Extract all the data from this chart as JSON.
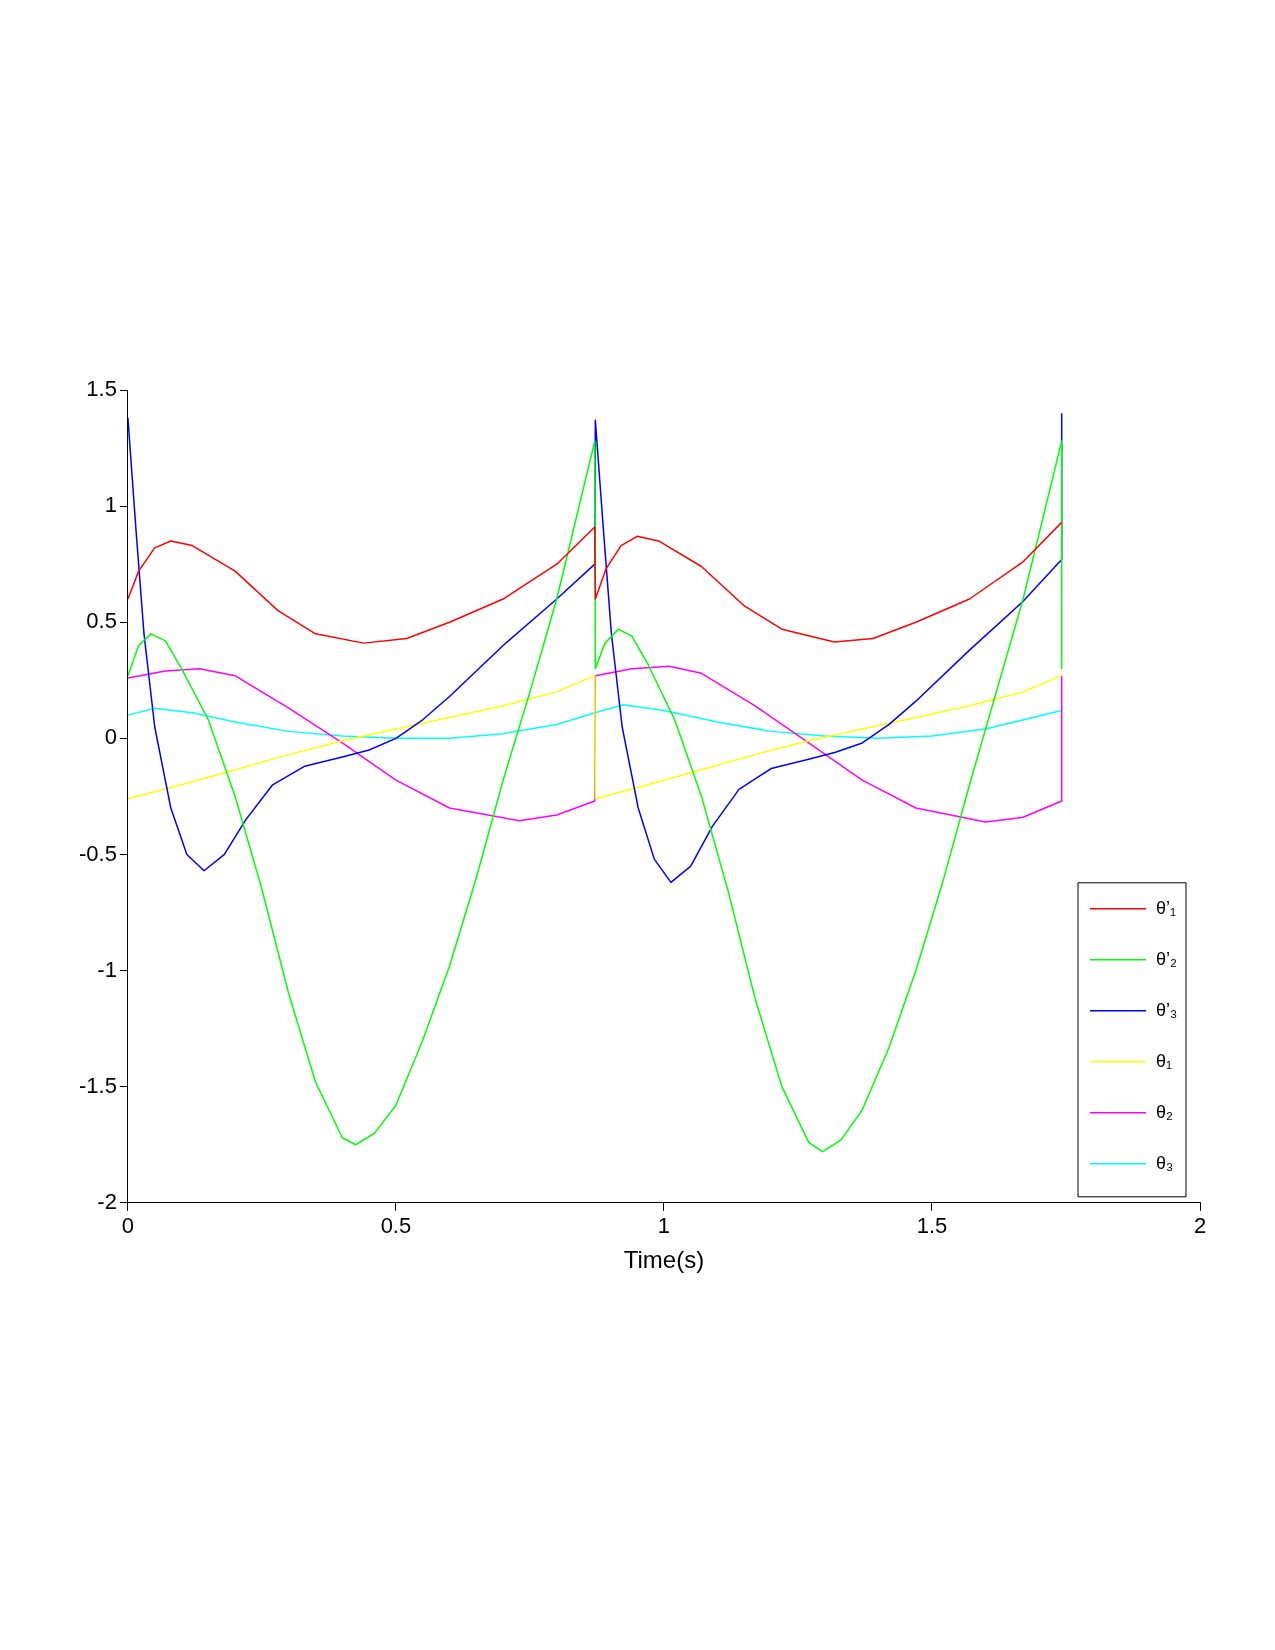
{
  "chart_data": {
    "type": "line",
    "xlabel": "Time(s)",
    "xlim": [
      0,
      2
    ],
    "xticks": [
      0,
      0.5,
      1,
      1.5,
      2
    ],
    "ylim": [
      -2,
      1.5
    ],
    "yticks": [
      -2,
      -1.5,
      -1,
      -0.5,
      0,
      0.5,
      1,
      1.5
    ],
    "grid": false,
    "legend": "bottom right",
    "marker": "none",
    "line_style": "solid",
    "series": [
      {
        "name": "θ’₁",
        "color": "#ff0000",
        "x": [
          0,
          0.02,
          0.05,
          0.08,
          0.12,
          0.2,
          0.28,
          0.35,
          0.44,
          0.52,
          0.6,
          0.7,
          0.8,
          0.871,
          0.872,
          0.892,
          0.92,
          0.95,
          0.99,
          1.07,
          1.15,
          1.22,
          1.318,
          1.39,
          1.47,
          1.57,
          1.67,
          1.742
        ],
        "values": [
          0.6,
          0.72,
          0.82,
          0.85,
          0.83,
          0.72,
          0.55,
          0.45,
          0.41,
          0.43,
          0.5,
          0.6,
          0.75,
          0.91,
          0.6,
          0.73,
          0.83,
          0.87,
          0.85,
          0.74,
          0.57,
          0.47,
          0.415,
          0.43,
          0.5,
          0.6,
          0.76,
          0.93
        ]
      },
      {
        "name": "θ’₂",
        "color": "#00ff00",
        "x": [
          0,
          0.02,
          0.043,
          0.07,
          0.1,
          0.15,
          0.2,
          0.25,
          0.3,
          0.35,
          0.4,
          0.425,
          0.46,
          0.5,
          0.55,
          0.6,
          0.65,
          0.7,
          0.75,
          0.8,
          0.871,
          0.872,
          0.89,
          0.915,
          0.94,
          0.97,
          1.02,
          1.07,
          1.12,
          1.17,
          1.22,
          1.27,
          1.296,
          1.33,
          1.37,
          1.42,
          1.47,
          1.52,
          1.57,
          1.62,
          1.67,
          1.742,
          1.742
        ],
        "values": [
          0.27,
          0.4,
          0.45,
          0.42,
          0.3,
          0.08,
          -0.25,
          -0.65,
          -1.1,
          -1.48,
          -1.72,
          -1.75,
          -1.7,
          -1.58,
          -1.3,
          -0.98,
          -0.6,
          -0.18,
          0.2,
          0.6,
          1.28,
          0.3,
          0.41,
          0.47,
          0.44,
          0.32,
          0.08,
          -0.25,
          -0.66,
          -1.12,
          -1.5,
          -1.74,
          -1.78,
          -1.73,
          -1.6,
          -1.33,
          -1.0,
          -0.62,
          -0.2,
          0.2,
          0.6,
          1.28,
          0.3
        ]
      },
      {
        "name": "θ’₃",
        "color": "#0000ff",
        "x": [
          0,
          0.015,
          0.03,
          0.05,
          0.08,
          0.11,
          0.142,
          0.18,
          0.22,
          0.27,
          0.33,
          0.4,
          0.45,
          0.5,
          0.55,
          0.6,
          0.7,
          0.8,
          0.871,
          0.872,
          0.887,
          0.902,
          0.922,
          0.952,
          0.982,
          1.013,
          1.05,
          1.09,
          1.14,
          1.2,
          1.27,
          1.32,
          1.37,
          1.42,
          1.47,
          1.57,
          1.67,
          1.742,
          1.742
        ],
        "values": [
          1.38,
          0.9,
          0.45,
          0.05,
          -0.3,
          -0.5,
          -0.57,
          -0.5,
          -0.35,
          -0.2,
          -0.12,
          -0.08,
          -0.05,
          0.0,
          0.08,
          0.18,
          0.4,
          0.6,
          0.75,
          1.37,
          0.9,
          0.45,
          0.05,
          -0.3,
          -0.52,
          -0.62,
          -0.55,
          -0.38,
          -0.22,
          -0.13,
          -0.09,
          -0.06,
          -0.02,
          0.06,
          0.16,
          0.38,
          0.59,
          0.77,
          1.4
        ]
      },
      {
        "name": "θ₁",
        "color": "#ffff00",
        "x": [
          0,
          0.1,
          0.2,
          0.3,
          0.4,
          0.5,
          0.6,
          0.7,
          0.8,
          0.871,
          0.872,
          0.97,
          1.07,
          1.17,
          1.27,
          1.37,
          1.47,
          1.57,
          1.67,
          1.742
        ],
        "values": [
          -0.26,
          -0.2,
          -0.135,
          -0.07,
          -0.01,
          0.04,
          0.09,
          0.14,
          0.2,
          0.27,
          -0.26,
          -0.2,
          -0.135,
          -0.07,
          -0.01,
          0.04,
          0.09,
          0.14,
          0.2,
          0.27
        ]
      },
      {
        "name": "θ₂",
        "color": "#ff00ff",
        "x": [
          0,
          0.07,
          0.134,
          0.2,
          0.3,
          0.4,
          0.5,
          0.6,
          0.73,
          0.8,
          0.871,
          0.872,
          0.94,
          1.01,
          1.07,
          1.17,
          1.27,
          1.37,
          1.47,
          1.6,
          1.67,
          1.742,
          1.742
        ],
        "values": [
          0.26,
          0.29,
          0.3,
          0.27,
          0.13,
          -0.02,
          -0.18,
          -0.3,
          -0.355,
          -0.33,
          -0.27,
          0.27,
          0.3,
          0.31,
          0.28,
          0.14,
          -0.02,
          -0.18,
          -0.3,
          -0.36,
          -0.34,
          -0.27,
          0.27
        ]
      },
      {
        "name": "θ₃",
        "color": "#00ffff",
        "x": [
          0,
          0.05,
          0.12,
          0.2,
          0.3,
          0.4,
          0.5,
          0.6,
          0.7,
          0.8,
          0.871,
          0.924,
          1.0,
          1.1,
          1.2,
          1.3,
          1.4,
          1.5,
          1.6,
          1.742
        ],
        "values": [
          0.1,
          0.13,
          0.11,
          0.07,
          0.03,
          0.01,
          0.0,
          0.0,
          0.02,
          0.06,
          0.11,
          0.145,
          0.12,
          0.07,
          0.03,
          0.01,
          0.0,
          0.01,
          0.04,
          0.12
        ]
      }
    ]
  }
}
